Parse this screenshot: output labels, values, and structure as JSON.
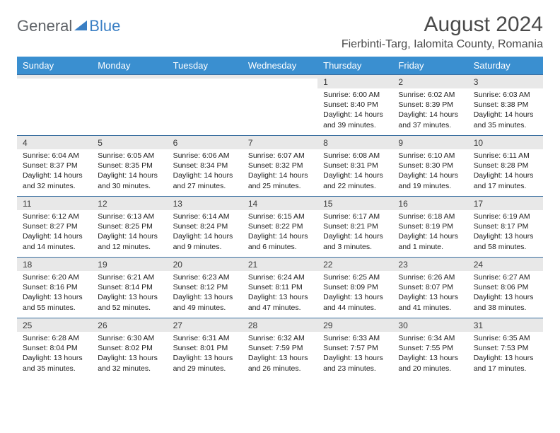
{
  "logo": {
    "part1": "General",
    "part2": "Blue"
  },
  "title": "August 2024",
  "location": "Fierbinti-Targ, Ialomita County, Romania",
  "weekdays": [
    "Sunday",
    "Monday",
    "Tuesday",
    "Wednesday",
    "Thursday",
    "Friday",
    "Saturday"
  ],
  "colors": {
    "header_bg": "#3a8fd0",
    "header_fg": "#ffffff",
    "daynum_bg": "#e8e8e8",
    "rule": "#3a6fa0",
    "title_fg": "#4a4a4a",
    "logo_gray": "#5f6368",
    "logo_blue": "#3a7fc4"
  },
  "weeks": [
    [
      {
        "n": "",
        "sr": "",
        "ss": "",
        "dl": ""
      },
      {
        "n": "",
        "sr": "",
        "ss": "",
        "dl": ""
      },
      {
        "n": "",
        "sr": "",
        "ss": "",
        "dl": ""
      },
      {
        "n": "",
        "sr": "",
        "ss": "",
        "dl": ""
      },
      {
        "n": "1",
        "sr": "Sunrise: 6:00 AM",
        "ss": "Sunset: 8:40 PM",
        "dl": "Daylight: 14 hours and 39 minutes."
      },
      {
        "n": "2",
        "sr": "Sunrise: 6:02 AM",
        "ss": "Sunset: 8:39 PM",
        "dl": "Daylight: 14 hours and 37 minutes."
      },
      {
        "n": "3",
        "sr": "Sunrise: 6:03 AM",
        "ss": "Sunset: 8:38 PM",
        "dl": "Daylight: 14 hours and 35 minutes."
      }
    ],
    [
      {
        "n": "4",
        "sr": "Sunrise: 6:04 AM",
        "ss": "Sunset: 8:37 PM",
        "dl": "Daylight: 14 hours and 32 minutes."
      },
      {
        "n": "5",
        "sr": "Sunrise: 6:05 AM",
        "ss": "Sunset: 8:35 PM",
        "dl": "Daylight: 14 hours and 30 minutes."
      },
      {
        "n": "6",
        "sr": "Sunrise: 6:06 AM",
        "ss": "Sunset: 8:34 PM",
        "dl": "Daylight: 14 hours and 27 minutes."
      },
      {
        "n": "7",
        "sr": "Sunrise: 6:07 AM",
        "ss": "Sunset: 8:32 PM",
        "dl": "Daylight: 14 hours and 25 minutes."
      },
      {
        "n": "8",
        "sr": "Sunrise: 6:08 AM",
        "ss": "Sunset: 8:31 PM",
        "dl": "Daylight: 14 hours and 22 minutes."
      },
      {
        "n": "9",
        "sr": "Sunrise: 6:10 AM",
        "ss": "Sunset: 8:30 PM",
        "dl": "Daylight: 14 hours and 19 minutes."
      },
      {
        "n": "10",
        "sr": "Sunrise: 6:11 AM",
        "ss": "Sunset: 8:28 PM",
        "dl": "Daylight: 14 hours and 17 minutes."
      }
    ],
    [
      {
        "n": "11",
        "sr": "Sunrise: 6:12 AM",
        "ss": "Sunset: 8:27 PM",
        "dl": "Daylight: 14 hours and 14 minutes."
      },
      {
        "n": "12",
        "sr": "Sunrise: 6:13 AM",
        "ss": "Sunset: 8:25 PM",
        "dl": "Daylight: 14 hours and 12 minutes."
      },
      {
        "n": "13",
        "sr": "Sunrise: 6:14 AM",
        "ss": "Sunset: 8:24 PM",
        "dl": "Daylight: 14 hours and 9 minutes."
      },
      {
        "n": "14",
        "sr": "Sunrise: 6:15 AM",
        "ss": "Sunset: 8:22 PM",
        "dl": "Daylight: 14 hours and 6 minutes."
      },
      {
        "n": "15",
        "sr": "Sunrise: 6:17 AM",
        "ss": "Sunset: 8:21 PM",
        "dl": "Daylight: 14 hours and 3 minutes."
      },
      {
        "n": "16",
        "sr": "Sunrise: 6:18 AM",
        "ss": "Sunset: 8:19 PM",
        "dl": "Daylight: 14 hours and 1 minute."
      },
      {
        "n": "17",
        "sr": "Sunrise: 6:19 AM",
        "ss": "Sunset: 8:17 PM",
        "dl": "Daylight: 13 hours and 58 minutes."
      }
    ],
    [
      {
        "n": "18",
        "sr": "Sunrise: 6:20 AM",
        "ss": "Sunset: 8:16 PM",
        "dl": "Daylight: 13 hours and 55 minutes."
      },
      {
        "n": "19",
        "sr": "Sunrise: 6:21 AM",
        "ss": "Sunset: 8:14 PM",
        "dl": "Daylight: 13 hours and 52 minutes."
      },
      {
        "n": "20",
        "sr": "Sunrise: 6:23 AM",
        "ss": "Sunset: 8:12 PM",
        "dl": "Daylight: 13 hours and 49 minutes."
      },
      {
        "n": "21",
        "sr": "Sunrise: 6:24 AM",
        "ss": "Sunset: 8:11 PM",
        "dl": "Daylight: 13 hours and 47 minutes."
      },
      {
        "n": "22",
        "sr": "Sunrise: 6:25 AM",
        "ss": "Sunset: 8:09 PM",
        "dl": "Daylight: 13 hours and 44 minutes."
      },
      {
        "n": "23",
        "sr": "Sunrise: 6:26 AM",
        "ss": "Sunset: 8:07 PM",
        "dl": "Daylight: 13 hours and 41 minutes."
      },
      {
        "n": "24",
        "sr": "Sunrise: 6:27 AM",
        "ss": "Sunset: 8:06 PM",
        "dl": "Daylight: 13 hours and 38 minutes."
      }
    ],
    [
      {
        "n": "25",
        "sr": "Sunrise: 6:28 AM",
        "ss": "Sunset: 8:04 PM",
        "dl": "Daylight: 13 hours and 35 minutes."
      },
      {
        "n": "26",
        "sr": "Sunrise: 6:30 AM",
        "ss": "Sunset: 8:02 PM",
        "dl": "Daylight: 13 hours and 32 minutes."
      },
      {
        "n": "27",
        "sr": "Sunrise: 6:31 AM",
        "ss": "Sunset: 8:01 PM",
        "dl": "Daylight: 13 hours and 29 minutes."
      },
      {
        "n": "28",
        "sr": "Sunrise: 6:32 AM",
        "ss": "Sunset: 7:59 PM",
        "dl": "Daylight: 13 hours and 26 minutes."
      },
      {
        "n": "29",
        "sr": "Sunrise: 6:33 AM",
        "ss": "Sunset: 7:57 PM",
        "dl": "Daylight: 13 hours and 23 minutes."
      },
      {
        "n": "30",
        "sr": "Sunrise: 6:34 AM",
        "ss": "Sunset: 7:55 PM",
        "dl": "Daylight: 13 hours and 20 minutes."
      },
      {
        "n": "31",
        "sr": "Sunrise: 6:35 AM",
        "ss": "Sunset: 7:53 PM",
        "dl": "Daylight: 13 hours and 17 minutes."
      }
    ]
  ]
}
